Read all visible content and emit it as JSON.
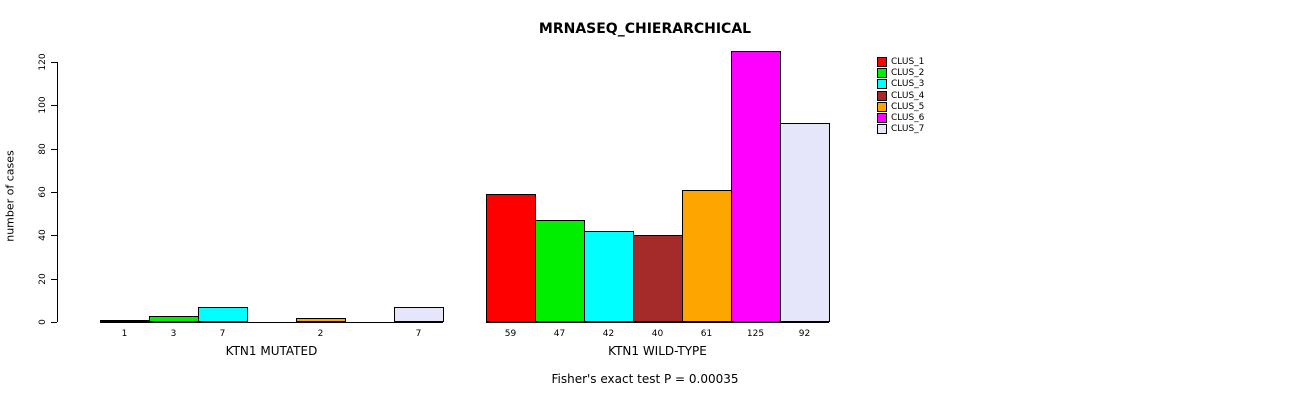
{
  "chart_data": {
    "type": "bar",
    "title": "MRNASEQ_CHIERARCHICAL",
    "ylabel": "number of cases",
    "footnote": "Fisher's exact test P = 0.00035",
    "ylim": [
      0,
      120
    ],
    "yticks": [
      0,
      20,
      40,
      60,
      80,
      100,
      120
    ],
    "series_names": [
      "CLUS_1",
      "CLUS_2",
      "CLUS_3",
      "CLUS_4",
      "CLUS_5",
      "CLUS_6",
      "CLUS_7"
    ],
    "colors": [
      "#FF0000",
      "#00EE00",
      "#00FFFF",
      "#A52A2A",
      "#FFA500",
      "#FF00FF",
      "#E6E6FA"
    ],
    "legend_position": "right",
    "grid": false,
    "groups": [
      {
        "label": "KTN1 MUTATED",
        "values": [
          1,
          3,
          7,
          0,
          2,
          0,
          7
        ],
        "bar_labels": [
          "1",
          "3",
          "7",
          "",
          "2",
          "",
          "7"
        ]
      },
      {
        "label": "KTN1 WILD-TYPE",
        "values": [
          59,
          47,
          42,
          40,
          61,
          125,
          92
        ],
        "bar_labels": [
          "59",
          "47",
          "42",
          "40",
          "61",
          "125",
          "92"
        ]
      }
    ]
  }
}
